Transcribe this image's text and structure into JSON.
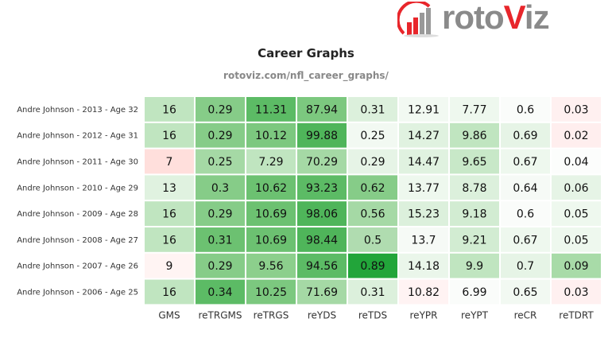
{
  "logo": {
    "text_main": "roto",
    "text_accent": "V",
    "text_end": "iz"
  },
  "chart_data": {
    "type": "heatmap",
    "title": "Career Graphs",
    "subtitle": "rotoviz.com/nfl_career_graphs/",
    "columns": [
      "GMS",
      "reTRGMS",
      "reTRGS",
      "reYDS",
      "reTDS",
      "reYPR",
      "reYPT",
      "reCR",
      "reTDRT"
    ],
    "rows": [
      {
        "label": "Andre Johnson - 2013 - Age 32",
        "values": [
          "16",
          "0.29",
          "11.31",
          "87.94",
          "0.31",
          "12.91",
          "7.77",
          "0.6",
          "0.03"
        ],
        "colors": [
          "#c0e5c0",
          "#86cc88",
          "#5cbb65",
          "#7cc87f",
          "#dcf0dc",
          "#f2f9f2",
          "#eef8ee",
          "#fafcfa",
          "#fff0f0"
        ]
      },
      {
        "label": "Andre Johnson - 2012 - Age 31",
        "values": [
          "16",
          "0.29",
          "10.12",
          "99.88",
          "0.25",
          "14.27",
          "9.86",
          "0.69",
          "0.02"
        ],
        "colors": [
          "#c0e5c0",
          "#86cc88",
          "#7cc87f",
          "#4fb55a",
          "#f2f9f2",
          "#e0f2e0",
          "#c0e5c0",
          "#e6f4e6",
          "#ffeeee"
        ]
      },
      {
        "label": "Andre Johnson - 2011 - Age 30",
        "values": [
          "7",
          "0.25",
          "7.29",
          "70.29",
          "0.29",
          "14.47",
          "9.65",
          "0.67",
          "0.04"
        ],
        "colors": [
          "#ffdfdc",
          "#a5d9a5",
          "#c0e5c0",
          "#a5d9a5",
          "#e6f4e6",
          "#e0f2e0",
          "#c8e8c8",
          "#eef8ee",
          "#fcfdfc"
        ]
      },
      {
        "label": "Andre Johnson - 2010 - Age 29",
        "values": [
          "13",
          "0.3",
          "10.62",
          "93.23",
          "0.62",
          "13.77",
          "8.78",
          "0.64",
          "0.06"
        ],
        "colors": [
          "#e0f2e0",
          "#86cc88",
          "#6cc171",
          "#5cbb65",
          "#86cc88",
          "#eef8ee",
          "#dcf0dc",
          "#f6faf6",
          "#e6f4e6"
        ]
      },
      {
        "label": "Andre Johnson - 2009 - Age 28",
        "values": [
          "16",
          "0.29",
          "10.69",
          "98.06",
          "0.56",
          "15.23",
          "9.18",
          "0.6",
          "0.05"
        ],
        "colors": [
          "#c0e5c0",
          "#86cc88",
          "#6cc171",
          "#4fb55a",
          "#a5d9a5",
          "#dcf0dc",
          "#d2ecd2",
          "#fafcfa",
          "#eef8ee"
        ]
      },
      {
        "label": "Andre Johnson - 2008 - Age 27",
        "values": [
          "16",
          "0.31",
          "10.69",
          "98.44",
          "0.5",
          "13.7",
          "9.21",
          "0.67",
          "0.05"
        ],
        "colors": [
          "#c0e5c0",
          "#6cc171",
          "#6cc171",
          "#4fb55a",
          "#b0dcb0",
          "#f6faf6",
          "#d2ecd2",
          "#eef8ee",
          "#eef8ee"
        ]
      },
      {
        "label": "Andre Johnson - 2007 - Age 26",
        "values": [
          "9",
          "0.29",
          "9.56",
          "94.56",
          "0.89",
          "14.18",
          "9.9",
          "0.7",
          "0.09"
        ],
        "colors": [
          "#fff4f3",
          "#86cc88",
          "#8ccf8c",
          "#5cbb65",
          "#22a53a",
          "#eaf6ea",
          "#c0e5c0",
          "#e6f4e6",
          "#a8dba8"
        ]
      },
      {
        "label": "Andre Johnson - 2006 - Age 25",
        "values": [
          "16",
          "0.34",
          "10.25",
          "71.69",
          "0.31",
          "10.82",
          "6.99",
          "0.65",
          "0.03"
        ],
        "colors": [
          "#c0e5c0",
          "#5cbb65",
          "#7cc87f",
          "#a5d9a5",
          "#dcf0dc",
          "#fff3f3",
          "#fafcfa",
          "#f2f9f2",
          "#fff0f0"
        ]
      }
    ]
  }
}
